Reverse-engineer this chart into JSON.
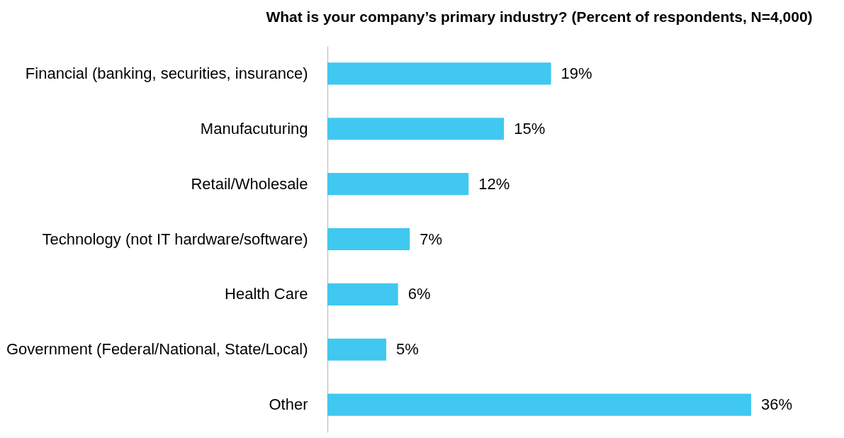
{
  "chart_data": {
    "type": "bar",
    "orientation": "horizontal",
    "title": "What is your company’s primary industry? (Percent of respondents, N=4,000)",
    "categories": [
      "Financial (banking, securities, insurance)",
      "Manufacuturing",
      "Retail/Wholesale",
      "Technology (not IT hardware/software)",
      "Health Care",
      "Government (Federal/National, State/Local)",
      "Other"
    ],
    "values": [
      19,
      15,
      12,
      7,
      6,
      5,
      36
    ],
    "value_labels": [
      "19%",
      "15%",
      "12%",
      "7%",
      "6%",
      "5%",
      "36%"
    ],
    "color": "#40c8f0"
  }
}
